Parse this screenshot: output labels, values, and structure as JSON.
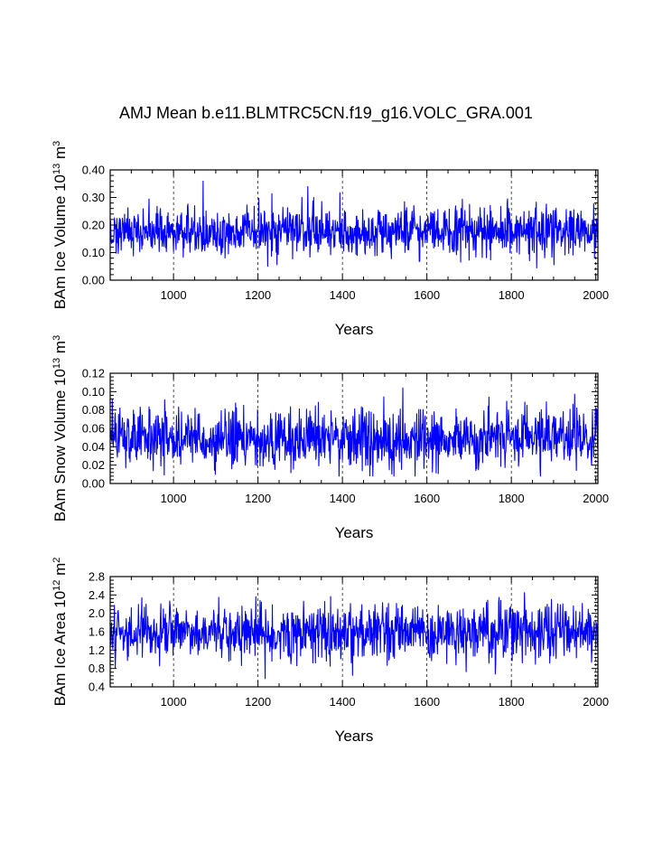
{
  "title": "AMJ Mean b.e11.BLMTRC5CN.f19_g16.VOLC_GRA.001",
  "colors": {
    "series": "#0000ff",
    "axes": "#000000",
    "grid": "#000000",
    "background": "#ffffff"
  },
  "chart_data": [
    {
      "type": "line",
      "title": "AMJ Mean b.e11.BLMTRC5CN.f19_g16.VOLC_GRA.001",
      "xlabel": "Years",
      "ylabel": {
        "text": "BAm Ice Volume 10",
        "exp": "13",
        "unit": " m",
        "unit_exp": "3"
      },
      "xlim": [
        850,
        2005
      ],
      "ylim": [
        0,
        0.4
      ],
      "xticks": [
        1000,
        1200,
        1400,
        1600,
        1800,
        2000
      ],
      "yticks": [
        "0.00",
        "0.10",
        "0.20",
        "0.30",
        "0.40"
      ],
      "gridlines_x": "dashed vertical at major x ticks",
      "series": [
        {
          "name": "BAm Ice Volume",
          "mean": 0.175,
          "std": 0.045,
          "min": 0.035,
          "max": 0.36,
          "note": "annual values, years 850-2005; values estimated"
        }
      ]
    },
    {
      "type": "line",
      "xlabel": "Years",
      "ylabel": {
        "text": "BAm Snow Volume 10",
        "exp": "13",
        "unit": " m",
        "unit_exp": "3"
      },
      "xlim": [
        850,
        2005
      ],
      "ylim": [
        0,
        0.12
      ],
      "xticks": [
        1000,
        1200,
        1400,
        1600,
        1800,
        2000
      ],
      "yticks": [
        "0.00",
        "0.02",
        "0.04",
        "0.06",
        "0.08",
        "0.10",
        "0.12"
      ],
      "gridlines_x": "dashed vertical at major x ticks",
      "series": [
        {
          "name": "BAm Snow Volume",
          "mean": 0.05,
          "std": 0.016,
          "min": 0.008,
          "max": 0.104,
          "note": "annual values, years 850-2005; values estimated"
        }
      ]
    },
    {
      "type": "line",
      "xlabel": "Years",
      "ylabel": {
        "text": "BAm Ice Area 10",
        "exp": "12",
        "unit": " m",
        "unit_exp": "2"
      },
      "xlim": [
        850,
        2005
      ],
      "ylim": [
        0.4,
        2.8
      ],
      "xticks": [
        1000,
        1200,
        1400,
        1600,
        1800,
        2000
      ],
      "yticks": [
        "0.4",
        "0.8",
        "1.2",
        "1.6",
        "2.0",
        "2.4",
        "2.8"
      ],
      "gridlines_x": "dashed vertical at major x ticks",
      "series": [
        {
          "name": "BAm Ice Area",
          "mean": 1.6,
          "std": 0.3,
          "min": 0.58,
          "max": 2.45,
          "note": "annual values, years 850-2005; values estimated"
        }
      ]
    }
  ]
}
